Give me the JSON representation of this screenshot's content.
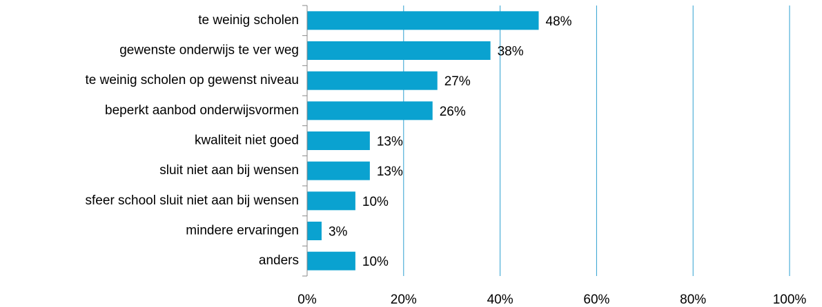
{
  "chart_data": {
    "type": "bar",
    "orientation": "horizontal",
    "categories": [
      "te weinig scholen",
      "gewenste onderwijs te ver weg",
      "te weinig scholen op gewenst niveau",
      "beperkt aanbod onderwijsvormen",
      "kwaliteit niet goed",
      "sluit niet aan bij wensen",
      "sfeer school sluit niet aan bij wensen",
      "mindere ervaringen",
      "anders"
    ],
    "values": [
      48,
      38,
      27,
      26,
      13,
      13,
      10,
      3,
      10
    ],
    "value_labels": [
      "48%",
      "38%",
      "27%",
      "26%",
      "13%",
      "13%",
      "10%",
      "3%",
      "10%"
    ],
    "color": "#0aa2d0",
    "xlim": [
      0,
      100
    ],
    "xticks": [
      {
        "value": 0,
        "label": "0%"
      },
      {
        "value": 20,
        "label": "20%"
      },
      {
        "value": 40,
        "label": "40%"
      },
      {
        "value": 60,
        "label": "60%"
      },
      {
        "value": 80,
        "label": "80%"
      },
      {
        "value": 100,
        "label": "100%"
      }
    ],
    "grid": true
  }
}
